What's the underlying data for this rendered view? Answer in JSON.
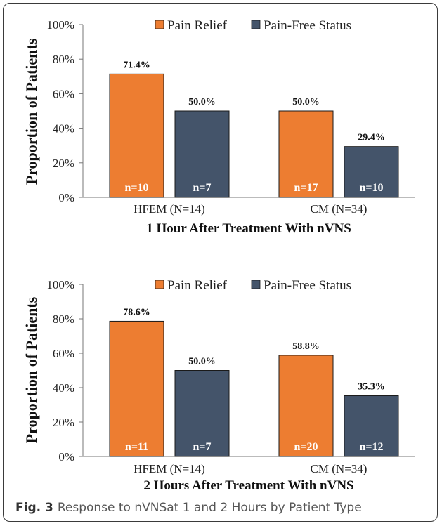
{
  "chart_data": [
    {
      "type": "bar",
      "title": "",
      "xlabel": "1 Hour After Treatment With nVNS",
      "ylabel": "Proportion of Patients",
      "categories": [
        "HFEM (N=14)",
        "CM (N=34)"
      ],
      "ylim": [
        0,
        100
      ],
      "yticks": [
        "0%",
        "20%",
        "40%",
        "60%",
        "80%",
        "100%"
      ],
      "legend_position": "top-right",
      "series": [
        {
          "name": "Pain Relief",
          "color": "#ed7d31",
          "values": [
            71.4,
            50.0
          ],
          "labels": [
            "71.4%",
            "50.0%"
          ],
          "n_labels": [
            "n=10",
            "n=17"
          ]
        },
        {
          "name": "Pain-Free Status",
          "color": "#44546a",
          "values": [
            50.0,
            29.4
          ],
          "labels": [
            "50.0%",
            "29.4%"
          ],
          "n_labels": [
            "n=7",
            "n=10"
          ]
        }
      ]
    },
    {
      "type": "bar",
      "title": "",
      "xlabel": "2 Hours After Treatment With nVNS",
      "ylabel": "Proportion of Patients",
      "categories": [
        "HFEM (N=14)",
        "CM (N=34)"
      ],
      "ylim": [
        0,
        100
      ],
      "yticks": [
        "0%",
        "20%",
        "40%",
        "60%",
        "80%",
        "100%"
      ],
      "legend_position": "top-right",
      "series": [
        {
          "name": "Pain Relief",
          "color": "#ed7d31",
          "values": [
            78.6,
            58.8
          ],
          "labels": [
            "78.6%",
            "58.8%"
          ],
          "n_labels": [
            "n=11",
            "n=20"
          ]
        },
        {
          "name": "Pain-Free Status",
          "color": "#44546a",
          "values": [
            50.0,
            35.3
          ],
          "labels": [
            "50.0%",
            "35.3%"
          ],
          "n_labels": [
            "n=7",
            "n=12"
          ]
        }
      ]
    }
  ],
  "caption": {
    "label": "Fig. 3",
    "text": "Response to nVNSat 1 and 2 Hours by Patient Type"
  }
}
